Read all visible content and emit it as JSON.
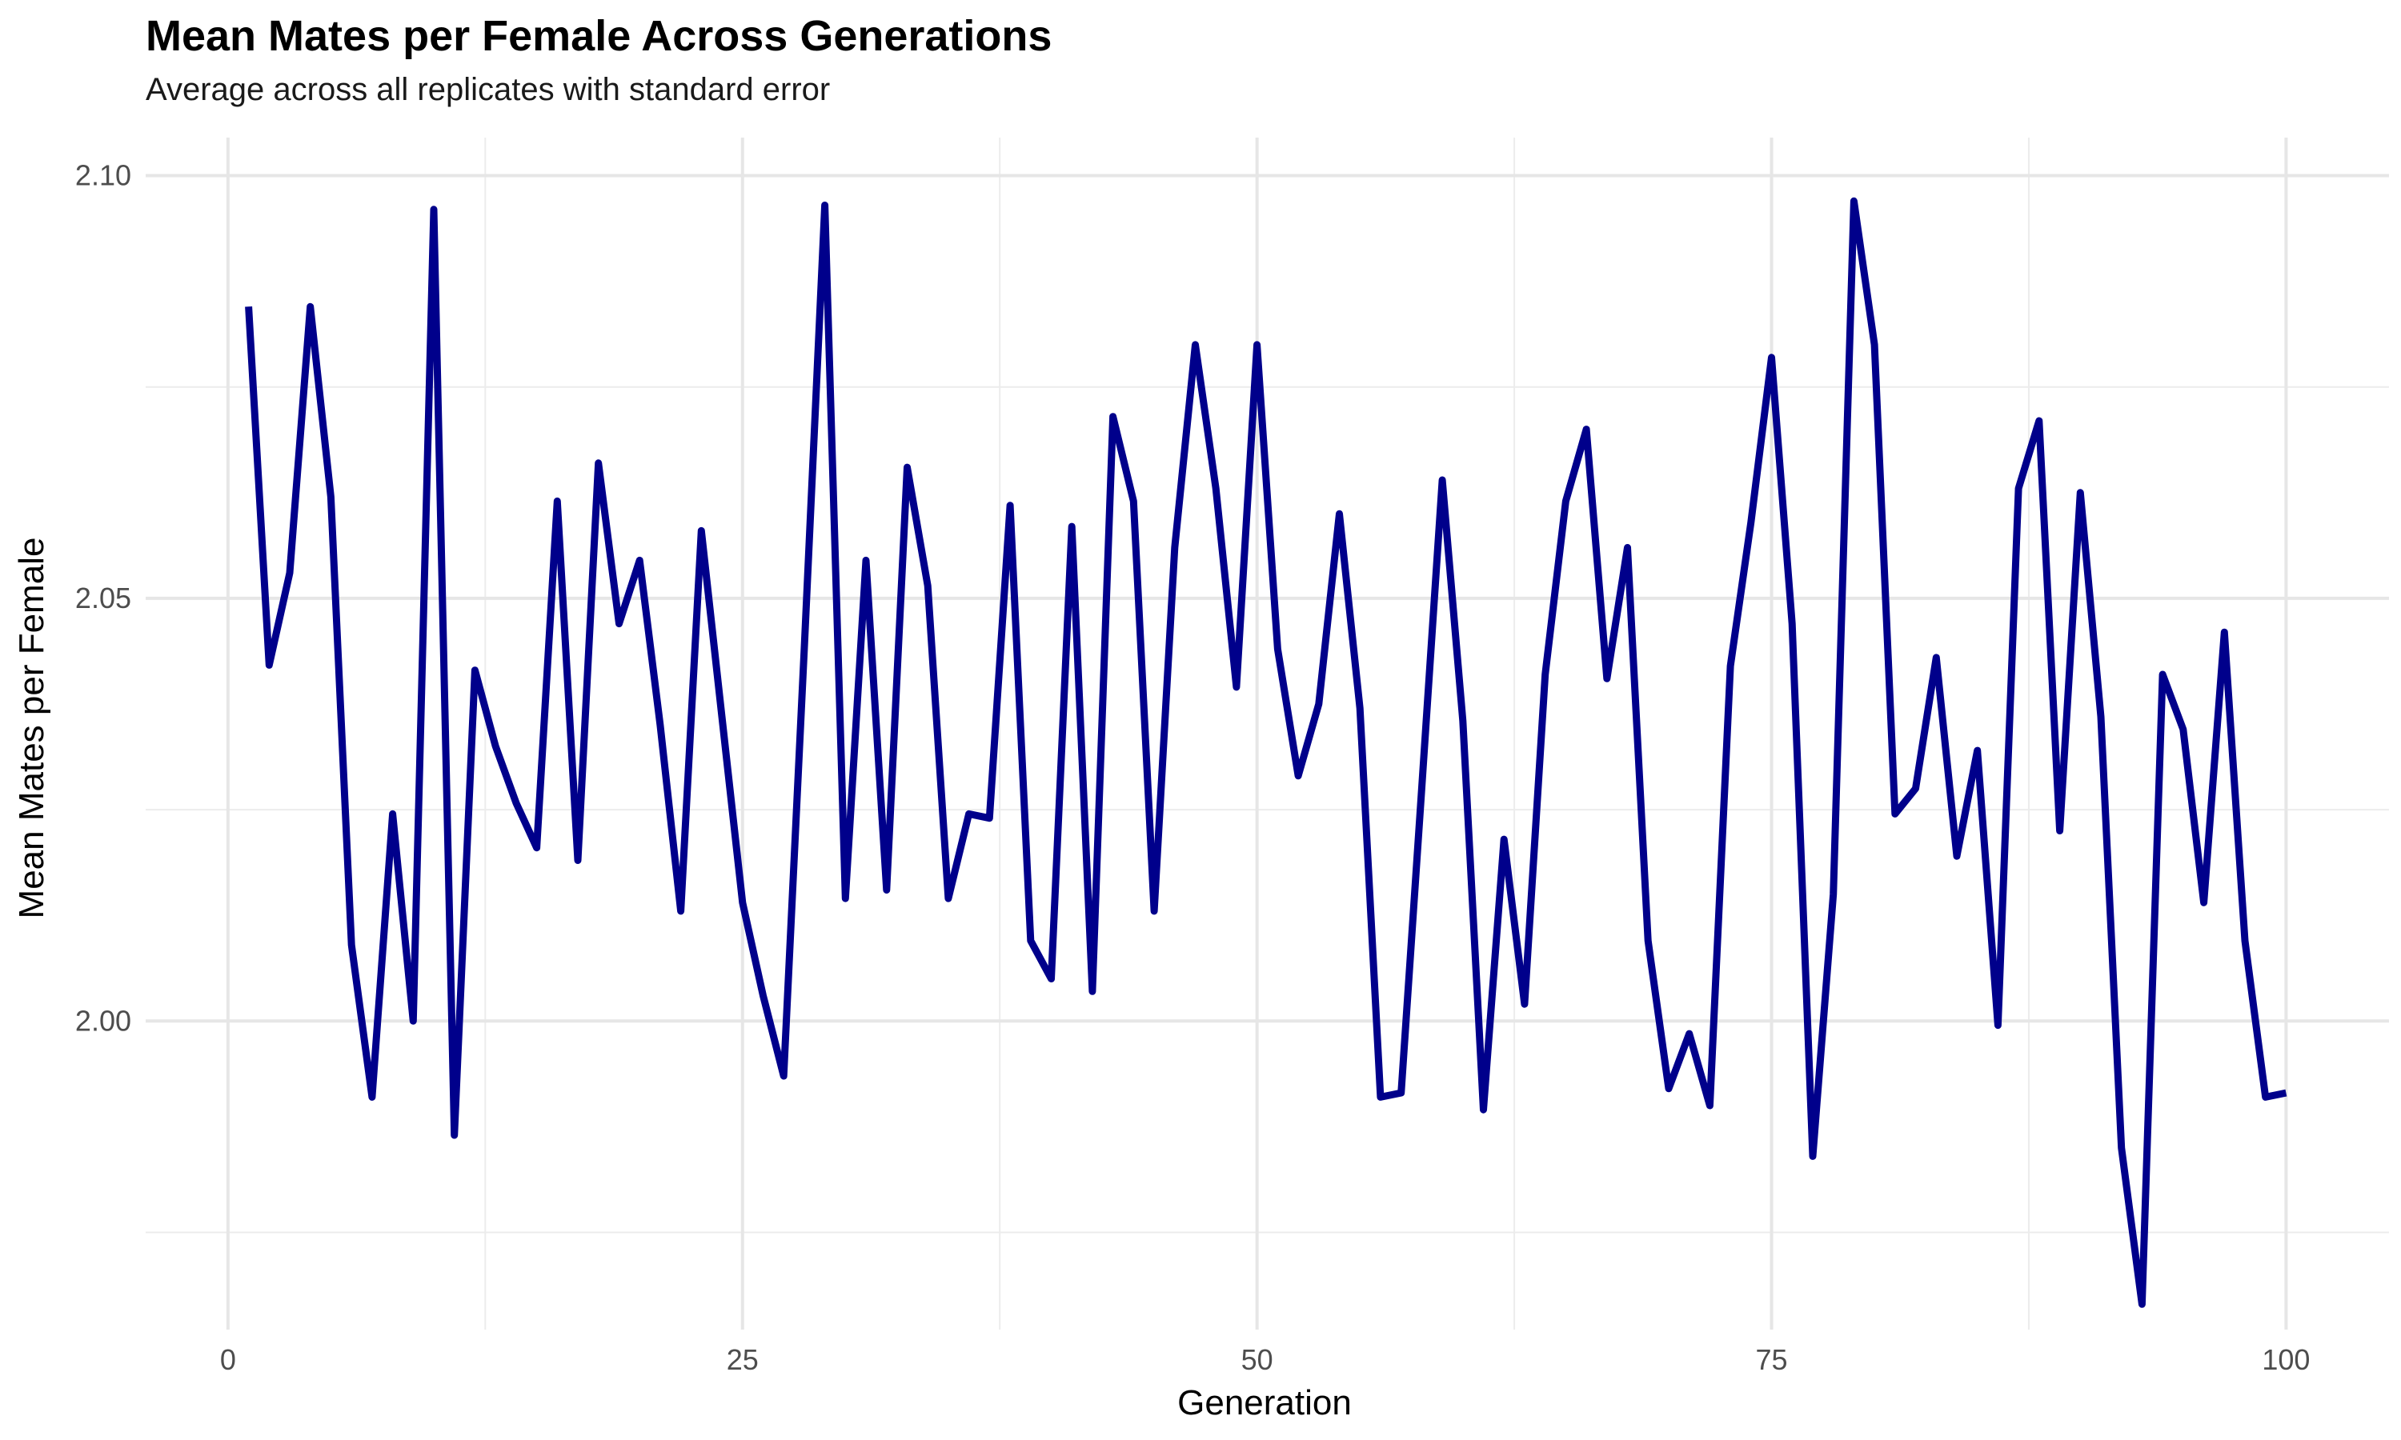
{
  "chart_data": {
    "type": "line",
    "title": "Mean Mates per Female Across Generations",
    "subtitle": "Average across all replicates with standard error",
    "xlabel": "Generation",
    "ylabel": "Mean Mates per Female",
    "xlim": [
      -4,
      105
    ],
    "ylim": [
      1.9635,
      2.1045
    ],
    "x_ticks": [
      0,
      25,
      50,
      75,
      100
    ],
    "x_tick_labels": [
      "0",
      "25",
      "50",
      "75",
      "100"
    ],
    "y_ticks": [
      2.0,
      2.05,
      2.1
    ],
    "y_tick_labels": [
      "2.00",
      "2.05",
      "2.10"
    ],
    "grid": true,
    "legend": "none",
    "series": [
      {
        "color": "#00008B",
        "x": [
          1,
          2,
          3,
          4,
          5,
          6,
          7,
          8,
          9,
          10,
          11,
          12,
          13,
          14,
          15,
          16,
          17,
          18,
          19,
          20,
          21,
          22,
          23,
          24,
          25,
          26,
          27,
          28,
          29,
          30,
          31,
          32,
          33,
          34,
          35,
          36,
          37,
          38,
          39,
          40,
          41,
          42,
          43,
          44,
          45,
          46,
          47,
          48,
          49,
          50,
          51,
          52,
          53,
          54,
          55,
          56,
          57,
          58,
          59,
          60,
          61,
          62,
          63,
          64,
          65,
          66,
          67,
          68,
          69,
          70,
          71,
          72,
          73,
          74,
          75,
          76,
          77,
          78,
          79,
          80,
          81,
          82,
          83,
          84,
          85,
          86,
          87,
          88,
          89,
          90,
          91,
          92,
          93,
          94,
          95,
          96,
          97,
          98,
          99,
          100
        ],
        "values": [
          2.0845,
          2.0421,
          2.053,
          2.0845,
          2.062,
          2.009,
          1.991,
          2.0245,
          2.0,
          2.096,
          1.9865,
          2.0415,
          2.0325,
          2.0258,
          2.0205,
          2.0615,
          2.019,
          2.066,
          2.047,
          2.0545,
          2.035,
          2.013,
          2.058,
          2.036,
          2.014,
          2.003,
          1.9935,
          2.044,
          2.0965,
          2.0145,
          2.0545,
          2.0155,
          2.0655,
          2.0515,
          2.0145,
          2.0245,
          2.024,
          2.061,
          2.0095,
          2.005,
          2.0585,
          2.0035,
          2.0715,
          2.0615,
          2.013,
          2.056,
          2.08,
          2.063,
          2.0395,
          2.08,
          2.044,
          2.029,
          2.0375,
          2.06,
          2.037,
          1.991,
          1.9915,
          2.0275,
          2.064,
          2.0355,
          1.9895,
          2.0215,
          2.002,
          2.041,
          2.0615,
          2.07,
          2.0405,
          2.056,
          2.0095,
          1.992,
          1.9985,
          1.99,
          2.042,
          2.059,
          2.0785,
          2.047,
          1.984,
          2.015,
          2.097,
          2.08,
          2.0245,
          2.0275,
          2.043,
          2.0195,
          2.032,
          1.9995,
          2.063,
          2.071,
          2.0225,
          2.0625,
          2.036,
          1.985,
          1.9665,
          2.041,
          2.0345,
          2.014,
          2.046,
          2.0095,
          1.991,
          1.9915
        ]
      }
    ]
  }
}
